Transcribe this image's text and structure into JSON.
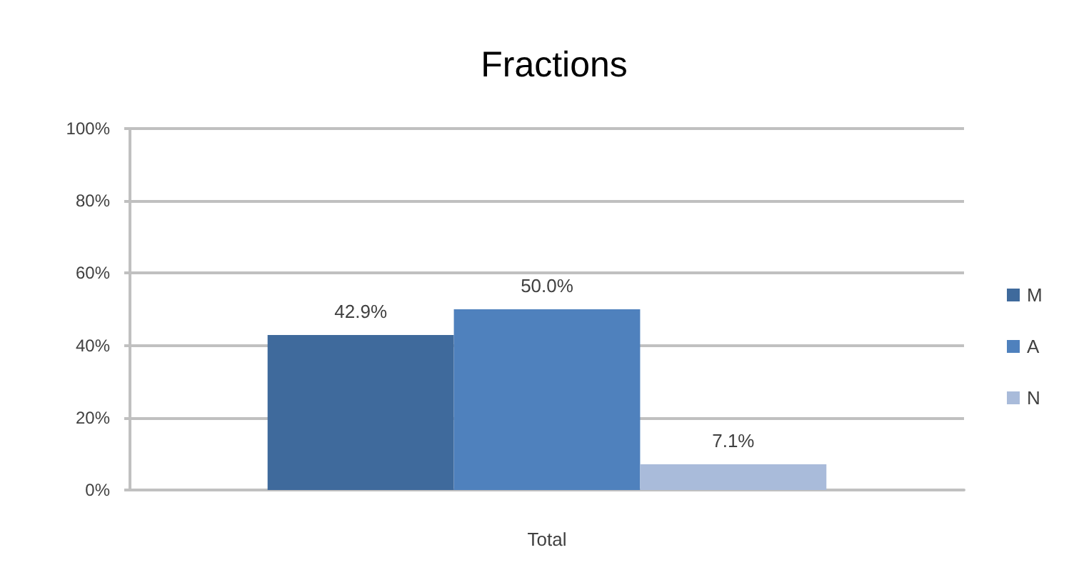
{
  "chart_data": {
    "type": "bar",
    "title": "Fractions",
    "categories": [
      "Total"
    ],
    "series": [
      {
        "name": "M",
        "color": "#3f6a9c",
        "values": [
          42.9
        ],
        "value_labels": [
          "42.9%"
        ]
      },
      {
        "name": "A",
        "color": "#4f81bd",
        "values": [
          50.0
        ],
        "value_labels": [
          "50.0%"
        ]
      },
      {
        "name": "N",
        "color": "#a9bbda",
        "values": [
          7.1
        ],
        "value_labels": [
          "7.1%"
        ]
      }
    ],
    "ylim": [
      0,
      100
    ],
    "yticks": [
      {
        "value": 0,
        "label": "0%"
      },
      {
        "value": 20,
        "label": "20%"
      },
      {
        "value": 40,
        "label": "40%"
      },
      {
        "value": 60,
        "label": "60%"
      },
      {
        "value": 80,
        "label": "80%"
      },
      {
        "value": 100,
        "label": "100%"
      }
    ],
    "grid": "y",
    "legend": "right"
  }
}
